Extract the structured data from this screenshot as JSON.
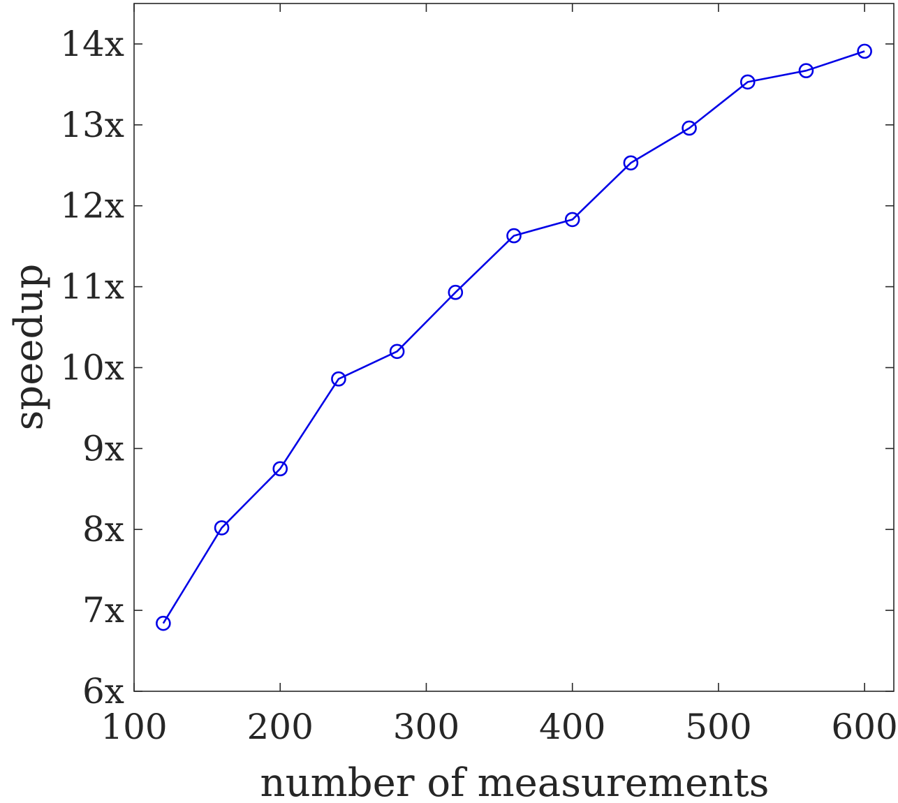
{
  "chart_data": {
    "type": "line",
    "title": "",
    "xlabel": "number of measurements",
    "ylabel": "speedup",
    "xlim": [
      100,
      620
    ],
    "ylim": [
      6,
      14.5
    ],
    "x_ticks": [
      100,
      200,
      300,
      400,
      500,
      600
    ],
    "x_tick_labels": [
      "100",
      "200",
      "300",
      "400",
      "500",
      "600"
    ],
    "y_ticks": [
      6,
      7,
      8,
      9,
      10,
      11,
      12,
      13,
      14
    ],
    "y_tick_labels": [
      "6x",
      "7x",
      "8x",
      "9x",
      "10x",
      "11x",
      "12x",
      "13x",
      "14x"
    ],
    "grid": false,
    "legend": "none",
    "series": [
      {
        "color": "#0000e6",
        "marker": "circle",
        "x": [
          120,
          160,
          200,
          240,
          280,
          320,
          360,
          400,
          440,
          480,
          520,
          560,
          600
        ],
        "y": [
          6.84,
          8.02,
          8.75,
          9.86,
          10.2,
          10.93,
          11.63,
          11.83,
          12.53,
          12.96,
          13.53,
          13.67,
          13.91
        ]
      }
    ]
  }
}
